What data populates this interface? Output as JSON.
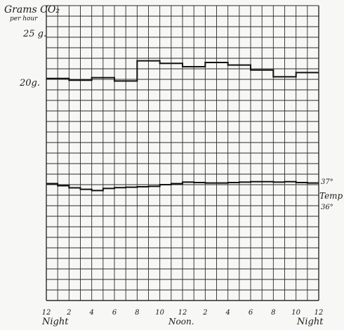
{
  "chart_data": {
    "type": "line",
    "ylabel": "Grams CO₂",
    "ylabel_sub": "per hour",
    "y_tick_labels": [
      {
        "label": "25 g.",
        "value": 25
      },
      {
        "label": "20g.",
        "value": 20
      }
    ],
    "x_tick_labels": [
      "12",
      "2",
      "4",
      "6",
      "8",
      "10",
      "12",
      "2",
      "4",
      "6",
      "8",
      "10",
      "12"
    ],
    "x_annotations": {
      "left": "Night",
      "center": "Noon.",
      "right": "Night"
    },
    "x_range": [
      0,
      24
    ],
    "temp_labels": {
      "upper": "37°",
      "middle": "Temp",
      "lower": "36°"
    },
    "grid": true,
    "series": [
      {
        "values_hourly_co2": [
          20.1,
          20.1,
          19.9,
          19.9,
          20.2,
          20.2,
          19.8,
          19.8,
          22.2,
          22.2,
          21.9,
          21.9,
          21.5,
          21.5,
          22.0,
          22.0,
          21.7,
          21.7,
          21.1,
          21.1,
          20.3,
          20.3,
          20.8,
          20.8
        ]
      },
      {
        "values_hourly_temp_c": [
          36.55,
          36.45,
          36.35,
          36.28,
          36.22,
          36.32,
          36.36,
          36.38,
          36.4,
          36.42,
          36.5,
          36.55,
          36.62,
          36.6,
          36.58,
          36.58,
          36.6,
          36.62,
          36.64,
          36.64,
          36.62,
          36.64,
          36.6,
          36.58
        ]
      }
    ]
  }
}
